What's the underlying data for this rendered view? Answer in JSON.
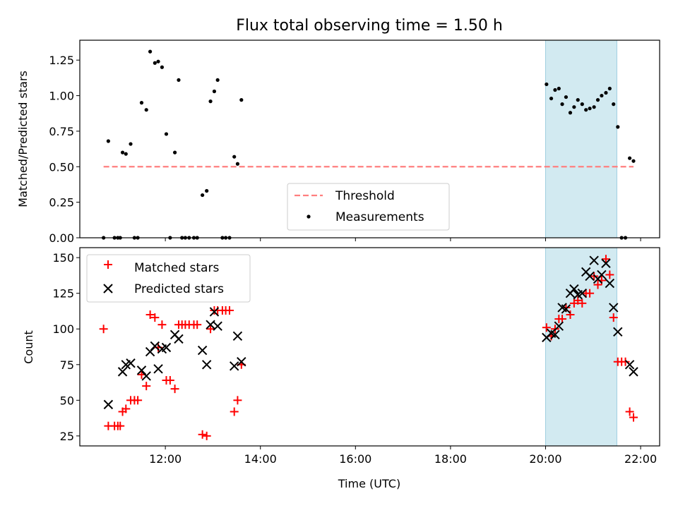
{
  "colors": {
    "threshold": "#ff7f7f",
    "measurement": "#000000",
    "matched": "#ff0000",
    "predicted": "#000000",
    "span": "#add8e6"
  },
  "chart_data": [
    {
      "type": "scatter",
      "title": "Flux total observing time = 1.50 h",
      "xlabel": "",
      "ylabel": "Matched/Predicted stars",
      "xlim": [
        10.2,
        22.4
      ],
      "ylim": [
        0,
        1.39
      ],
      "yticks": [
        0.0,
        0.25,
        0.5,
        0.75,
        1.0,
        1.25
      ],
      "ytick_labels": [
        "0.00",
        "0.25",
        "0.50",
        "0.75",
        "1.00",
        "1.25"
      ],
      "xticks": [
        12,
        14,
        16,
        18,
        20,
        22
      ],
      "shaded_span": [
        20.0,
        21.5
      ],
      "legend_position": "lower center",
      "series": [
        {
          "name": "Threshold",
          "type": "line",
          "style": "dashed",
          "x": [
            10.7,
            21.85
          ],
          "y": [
            0.5,
            0.5
          ]
        },
        {
          "name": "Measurements",
          "type": "scatter",
          "points": [
            [
              10.7,
              0.0
            ],
            [
              10.8,
              0.68
            ],
            [
              10.93,
              0.0
            ],
            [
              11.0,
              0.0
            ],
            [
              11.05,
              0.0
            ],
            [
              11.1,
              0.6
            ],
            [
              11.17,
              0.59
            ],
            [
              11.27,
              0.66
            ],
            [
              11.35,
              0.0
            ],
            [
              11.42,
              0.0
            ],
            [
              11.5,
              0.95
            ],
            [
              11.6,
              0.9
            ],
            [
              11.68,
              1.31
            ],
            [
              11.78,
              1.23
            ],
            [
              11.85,
              1.24
            ],
            [
              11.93,
              1.2
            ],
            [
              12.02,
              0.73
            ],
            [
              12.1,
              0.0
            ],
            [
              12.2,
              0.6
            ],
            [
              12.28,
              1.11
            ],
            [
              12.35,
              0.0
            ],
            [
              12.42,
              0.0
            ],
            [
              12.5,
              0.0
            ],
            [
              12.6,
              0.0
            ],
            [
              12.67,
              0.0
            ],
            [
              12.78,
              0.3
            ],
            [
              12.87,
              0.33
            ],
            [
              12.95,
              0.96
            ],
            [
              13.03,
              1.03
            ],
            [
              13.1,
              1.11
            ],
            [
              13.2,
              0.0
            ],
            [
              13.27,
              0.0
            ],
            [
              13.35,
              0.0
            ],
            [
              13.45,
              0.57
            ],
            [
              13.52,
              0.52
            ],
            [
              13.6,
              0.97
            ],
            [
              20.02,
              1.08
            ],
            [
              20.12,
              0.98
            ],
            [
              20.2,
              1.04
            ],
            [
              20.28,
              1.05
            ],
            [
              20.35,
              0.94
            ],
            [
              20.43,
              0.99
            ],
            [
              20.52,
              0.88
            ],
            [
              20.6,
              0.92
            ],
            [
              20.68,
              0.97
            ],
            [
              20.77,
              0.94
            ],
            [
              20.85,
              0.9
            ],
            [
              20.93,
              0.91
            ],
            [
              21.02,
              0.92
            ],
            [
              21.1,
              0.97
            ],
            [
              21.18,
              1.0
            ],
            [
              21.27,
              1.02
            ],
            [
              21.35,
              1.05
            ],
            [
              21.43,
              0.94
            ],
            [
              21.52,
              0.78
            ],
            [
              21.6,
              0.0
            ],
            [
              21.68,
              0.0
            ],
            [
              21.77,
              0.56
            ],
            [
              21.85,
              0.54
            ]
          ]
        }
      ]
    },
    {
      "type": "scatter",
      "title": "",
      "xlabel": "Time (UTC)",
      "ylabel": "Count",
      "xlim": [
        10.2,
        22.4
      ],
      "ylim": [
        18,
        157
      ],
      "yticks": [
        25,
        50,
        75,
        100,
        125,
        150
      ],
      "ytick_labels": [
        "25",
        "50",
        "75",
        "100",
        "125",
        "150"
      ],
      "xticks": [
        12,
        14,
        16,
        18,
        20,
        22
      ],
      "xtick_labels": [
        "12:00",
        "14:00",
        "16:00",
        "18:00",
        "20:00",
        "22:00"
      ],
      "shaded_span": [
        20.0,
        21.5
      ],
      "legend_position": "upper left",
      "series": [
        {
          "name": "Matched stars",
          "marker": "+",
          "points": [
            [
              10.7,
              100
            ],
            [
              10.8,
              32
            ],
            [
              10.93,
              32
            ],
            [
              11.0,
              32
            ],
            [
              11.05,
              32
            ],
            [
              11.1,
              42
            ],
            [
              11.17,
              44
            ],
            [
              11.27,
              50
            ],
            [
              11.35,
              50
            ],
            [
              11.42,
              50
            ],
            [
              11.5,
              68
            ],
            [
              11.6,
              60
            ],
            [
              11.68,
              110
            ],
            [
              11.78,
              108
            ],
            [
              11.85,
              87
            ],
            [
              11.93,
              103
            ],
            [
              12.02,
              64
            ],
            [
              12.1,
              64
            ],
            [
              12.2,
              58
            ],
            [
              12.28,
              103
            ],
            [
              12.35,
              103
            ],
            [
              12.42,
              103
            ],
            [
              12.5,
              103
            ],
            [
              12.6,
              103
            ],
            [
              12.67,
              103
            ],
            [
              12.78,
              26
            ],
            [
              12.87,
              25
            ],
            [
              12.95,
              100
            ],
            [
              13.03,
              113
            ],
            [
              13.1,
              113
            ],
            [
              13.2,
              113
            ],
            [
              13.27,
              113
            ],
            [
              13.35,
              113
            ],
            [
              13.45,
              42
            ],
            [
              13.52,
              50
            ],
            [
              13.6,
              75
            ],
            [
              20.02,
              101
            ],
            [
              20.12,
              95
            ],
            [
              20.2,
              100
            ],
            [
              20.28,
              107
            ],
            [
              20.35,
              107
            ],
            [
              20.43,
              115
            ],
            [
              20.52,
              110
            ],
            [
              20.6,
              118
            ],
            [
              20.68,
              120
            ],
            [
              20.77,
              118
            ],
            [
              20.85,
              125
            ],
            [
              20.93,
              125
            ],
            [
              21.02,
              137
            ],
            [
              21.1,
              131
            ],
            [
              21.18,
              134
            ],
            [
              21.27,
              149
            ],
            [
              21.35,
              138
            ],
            [
              21.43,
              108
            ],
            [
              21.52,
              77
            ],
            [
              21.6,
              77
            ],
            [
              21.68,
              77
            ],
            [
              21.77,
              42
            ],
            [
              21.85,
              38
            ]
          ]
        },
        {
          "name": "Predicted stars",
          "marker": "x",
          "points": [
            [
              10.8,
              47
            ],
            [
              11.1,
              70
            ],
            [
              11.17,
              75
            ],
            [
              11.27,
              76
            ],
            [
              11.5,
              71
            ],
            [
              11.6,
              67
            ],
            [
              11.68,
              84
            ],
            [
              11.78,
              88
            ],
            [
              11.85,
              72
            ],
            [
              11.93,
              86
            ],
            [
              12.02,
              87
            ],
            [
              12.2,
              96
            ],
            [
              12.28,
              93
            ],
            [
              12.78,
              85
            ],
            [
              12.87,
              75
            ],
            [
              12.95,
              103
            ],
            [
              13.03,
              112
            ],
            [
              13.1,
              102
            ],
            [
              13.45,
              74
            ],
            [
              13.52,
              95
            ],
            [
              13.6,
              77
            ],
            [
              20.02,
              94
            ],
            [
              20.12,
              97
            ],
            [
              20.2,
              96
            ],
            [
              20.28,
              102
            ],
            [
              20.35,
              115
            ],
            [
              20.43,
              114
            ],
            [
              20.52,
              125
            ],
            [
              20.6,
              128
            ],
            [
              20.68,
              124
            ],
            [
              20.77,
              125
            ],
            [
              20.85,
              140
            ],
            [
              20.93,
              137
            ],
            [
              21.02,
              148
            ],
            [
              21.1,
              135
            ],
            [
              21.18,
              138
            ],
            [
              21.27,
              146
            ],
            [
              21.35,
              132
            ],
            [
              21.43,
              115
            ],
            [
              21.52,
              98
            ],
            [
              21.77,
              75
            ],
            [
              21.85,
              70
            ]
          ]
        }
      ]
    }
  ]
}
